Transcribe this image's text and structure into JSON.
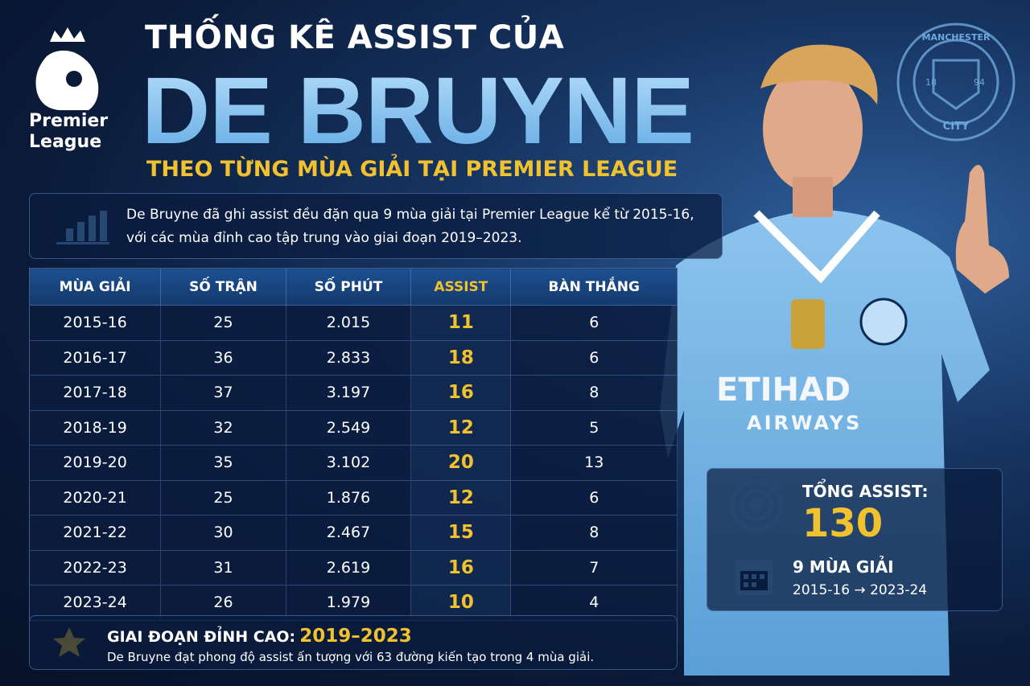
{
  "logo": {
    "line1": "Premier",
    "line2": "League"
  },
  "header": {
    "title_top": "THỐNG KÊ ASSIST CỦA",
    "title_main": "DE BRUYNE",
    "subtitle": "THEO TỪNG MÙA GIẢI TẠI PREMIER LEAGUE"
  },
  "intro": {
    "line1": "De Bruyne đã ghi assist đều đặn qua 9 mùa giải tại Premier League kể từ 2015-16,",
    "line2": "với các mùa đỉnh cao tập trung vào giai đoạn 2019–2023."
  },
  "table": {
    "columns": [
      "MÙA GIẢI",
      "SỐ TRẬN",
      "SỐ PHÚT",
      "ASSIST",
      "BÀN THẮNG"
    ],
    "rows": [
      [
        "2015-16",
        "25",
        "2.015",
        "11",
        "6"
      ],
      [
        "2016-17",
        "36",
        "2.833",
        "18",
        "6"
      ],
      [
        "2017-18",
        "37",
        "3.197",
        "16",
        "8"
      ],
      [
        "2018-19",
        "32",
        "2.549",
        "12",
        "5"
      ],
      [
        "2019-20",
        "35",
        "3.102",
        "20",
        "13"
      ],
      [
        "2020-21",
        "25",
        "1.876",
        "12",
        "6"
      ],
      [
        "2021-22",
        "30",
        "2.467",
        "15",
        "8"
      ],
      [
        "2022-23",
        "31",
        "2.619",
        "16",
        "7"
      ],
      [
        "2023-24",
        "26",
        "1.979",
        "10",
        "4"
      ]
    ]
  },
  "total": {
    "label": "TỔNG ASSIST:",
    "value": "130",
    "seasons": "9 MÙA GIẢI",
    "range": "2015-16 → 2023-24"
  },
  "highlight": {
    "label": "GIAI ĐOẠN ĐỈNH CAO:",
    "period": "2019–2023",
    "text": "De Bruyne đạt phong độ assist ấn tượng với 63 đường kiến tạo trong 4 mùa giải."
  },
  "badge": {
    "top": "MANCHESTER",
    "bottom": "CITY",
    "left": "18",
    "right": "94"
  },
  "jersey": {
    "sponsor": "ETIHAD",
    "sponsor2": "AIRWAYS"
  }
}
